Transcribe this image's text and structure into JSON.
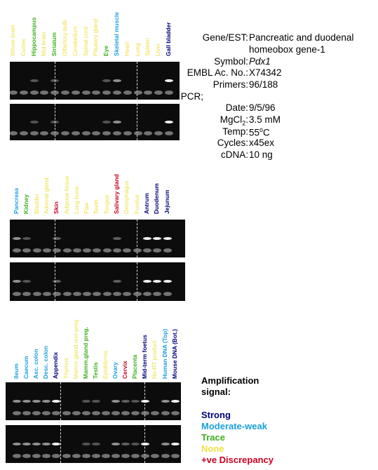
{
  "colors": {
    "strong": "#00007a",
    "moderate": "#1a9fdb",
    "trace": "#3cb01e",
    "none": "#ece043",
    "discrepancy": "#c8001e"
  },
  "panels": [
    {
      "lanes": [
        {
          "label": "Whole brain",
          "level": "none"
        },
        {
          "label": "Cortex",
          "level": "none"
        },
        {
          "label": "Hippocampus",
          "level": "trace"
        },
        {
          "label": "Mid brain",
          "level": "none"
        },
        {
          "label": "Striatum",
          "level": "trace"
        },
        {
          "label": "Olfactory bulb",
          "level": "none"
        },
        {
          "label": "Cerebellum",
          "level": "none"
        },
        {
          "label": "Spinal cord",
          "level": "none"
        },
        {
          "label": "Pituitary gland",
          "level": "none"
        },
        {
          "label": "Eye",
          "level": "trace"
        },
        {
          "label": "Skeletal muscle",
          "level": "moderate"
        },
        {
          "label": "Heart",
          "level": "none"
        },
        {
          "label": "Lung",
          "level": "none"
        },
        {
          "label": "Spleen",
          "level": "none"
        },
        {
          "label": "Liver",
          "level": "none"
        },
        {
          "label": "Gall bladder",
          "level": "strong"
        }
      ]
    },
    {
      "lanes": [
        {
          "label": "Pancreas",
          "level": "moderate"
        },
        {
          "label": "Kidney",
          "level": "trace"
        },
        {
          "label": "Bladder",
          "level": "none"
        },
        {
          "label": "Adrenal gland",
          "level": "none"
        },
        {
          "label": "Skin",
          "level": "discrepancy"
        },
        {
          "label": "Adipose tissue",
          "level": "none"
        },
        {
          "label": "Long bone",
          "level": "none"
        },
        {
          "label": "Paw",
          "level": "none"
        },
        {
          "label": "Teeth",
          "level": "none"
        },
        {
          "label": "Tongue",
          "level": "none"
        },
        {
          "label": "Salivary gland",
          "level": "discrepancy"
        },
        {
          "label": "Oesophagus",
          "level": "none"
        },
        {
          "label": "Fundus",
          "level": "none"
        },
        {
          "label": "Antrum",
          "level": "strong"
        },
        {
          "label": "Duodenum",
          "level": "strong"
        },
        {
          "label": "Jejunum",
          "level": "strong"
        }
      ]
    },
    {
      "lanes": [
        {
          "label": "Ileum",
          "level": "moderate"
        },
        {
          "label": "Caecum",
          "level": "moderate"
        },
        {
          "label": "Asc. colon",
          "level": "moderate"
        },
        {
          "label": "Desc. colon",
          "level": "moderate"
        },
        {
          "label": "Appendix",
          "level": "strong"
        },
        {
          "label": "Thymus",
          "level": "none"
        },
        {
          "label": "Mamm.gland non-preg",
          "level": "none"
        },
        {
          "label": "Mamm.gland preg.",
          "level": "trace"
        },
        {
          "label": "Testis",
          "level": "trace"
        },
        {
          "label": "Epididymis",
          "level": "none"
        },
        {
          "label": "Ovary",
          "level": "moderate"
        },
        {
          "label": "Cervix",
          "level": "discrepancy"
        },
        {
          "label": "Placenta",
          "level": "trace"
        },
        {
          "label": "Mid-term foetus",
          "level": "strong"
        },
        {
          "label": "No-RT product",
          "level": "none"
        },
        {
          "label": "Human DNA (Top)",
          "level": "moderate"
        },
        {
          "label": "Mouse DNA (Bot.)",
          "level": "strong"
        }
      ]
    }
  ],
  "info": [
    {
      "key": "Gene/EST:",
      "value": "Pancreatic and duodenal",
      "value2": "homeobox gene-1"
    },
    {
      "key": "Symbol:",
      "value": "Pdx1",
      "italic": true
    },
    {
      "key": "EMBL Ac. No.:",
      "value": "X74342"
    },
    {
      "key": "Primers:",
      "value": "96/188"
    },
    {
      "key": "PCR;",
      "value": ""
    },
    {
      "key": "Date:",
      "value": "9/5/96"
    },
    {
      "key": "MgCl",
      "sub": "2",
      "key_tail": ":",
      "value": "3.5 mM"
    },
    {
      "key": "Temp:",
      "value": "55",
      "sup": "o",
      "value_tail": "C"
    },
    {
      "key": "Cycles:",
      "value": "x45ex"
    },
    {
      "key": "cDNA:",
      "value": "10 ng"
    }
  ],
  "legend": {
    "title_line1": "Amplification",
    "title_line2": "signal:",
    "items": [
      {
        "label": "Strong",
        "level": "strong"
      },
      {
        "label": "Moderate-weak",
        "level": "moderate"
      },
      {
        "label": "Trace",
        "level": "trace"
      },
      {
        "label": "None",
        "level": "none"
      },
      {
        "label": "+ve Discrepancy",
        "level": "discrepancy"
      }
    ]
  }
}
